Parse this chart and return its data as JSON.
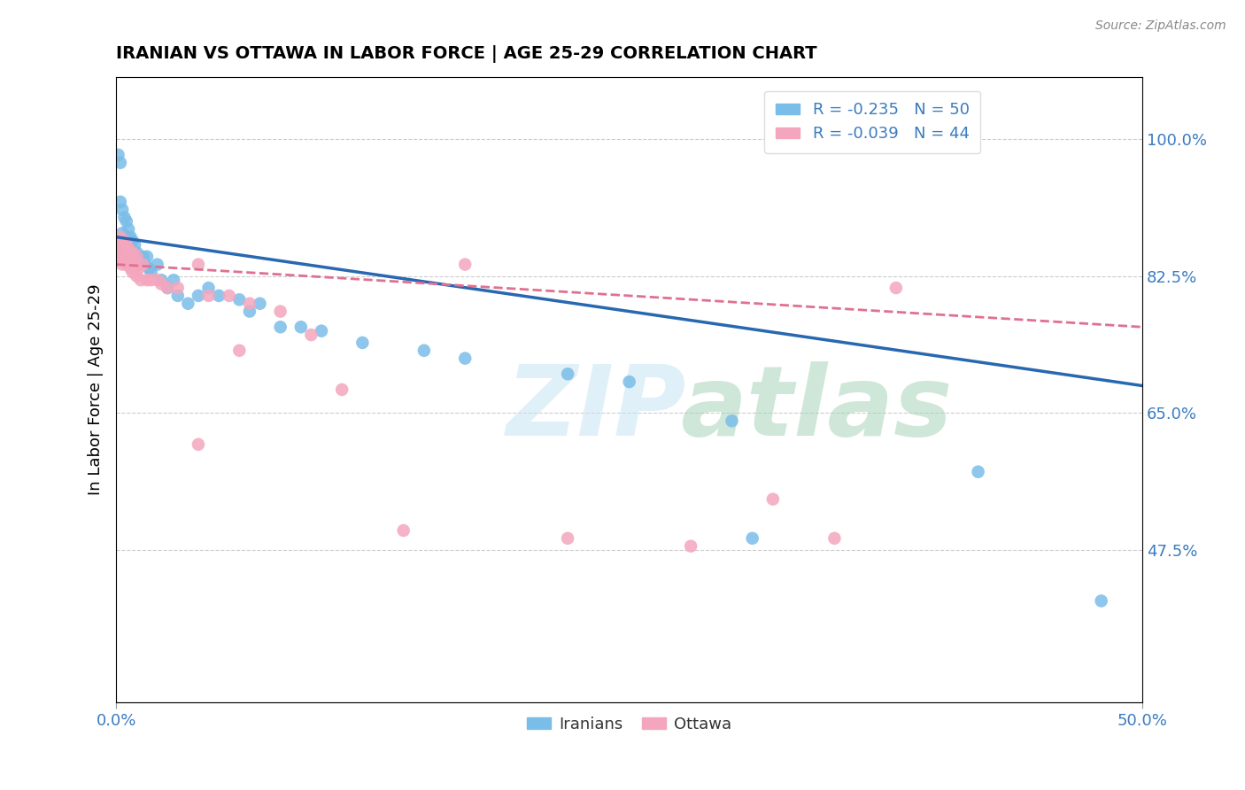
{
  "title": "IRANIAN VS OTTAWA IN LABOR FORCE | AGE 25-29 CORRELATION CHART",
  "source_text": "Source: ZipAtlas.com",
  "ylabel": "In Labor Force | Age 25-29",
  "xlim": [
    0.0,
    0.5
  ],
  "ylim": [
    0.28,
    1.08
  ],
  "ytick_labels": [
    "47.5%",
    "65.0%",
    "82.5%",
    "100.0%"
  ],
  "ytick_values": [
    0.475,
    0.65,
    0.825,
    1.0
  ],
  "iranians_color": "#7abde8",
  "ottawa_color": "#f4a6be",
  "trend_iranians_color": "#2868b0",
  "trend_ottawa_color": "#e07090",
  "iranians_scatter_x": [
    0.001,
    0.002,
    0.002,
    0.003,
    0.003,
    0.004,
    0.004,
    0.005,
    0.005,
    0.006,
    0.006,
    0.007,
    0.007,
    0.008,
    0.008,
    0.009,
    0.009,
    0.01,
    0.01,
    0.011,
    0.012,
    0.013,
    0.014,
    0.015,
    0.016,
    0.017,
    0.02,
    0.022,
    0.025,
    0.028,
    0.03,
    0.035,
    0.04,
    0.045,
    0.05,
    0.06,
    0.065,
    0.07,
    0.08,
    0.09,
    0.1,
    0.12,
    0.15,
    0.17,
    0.22,
    0.25,
    0.3,
    0.31,
    0.42,
    0.48
  ],
  "iranians_scatter_y": [
    0.98,
    0.97,
    0.92,
    0.91,
    0.88,
    0.9,
    0.86,
    0.895,
    0.855,
    0.885,
    0.87,
    0.875,
    0.86,
    0.87,
    0.85,
    0.865,
    0.85,
    0.855,
    0.84,
    0.845,
    0.84,
    0.85,
    0.84,
    0.85,
    0.835,
    0.83,
    0.84,
    0.82,
    0.81,
    0.82,
    0.8,
    0.79,
    0.8,
    0.81,
    0.8,
    0.795,
    0.78,
    0.79,
    0.76,
    0.76,
    0.755,
    0.74,
    0.73,
    0.72,
    0.7,
    0.69,
    0.64,
    0.49,
    0.575,
    0.41
  ],
  "ottawa_scatter_x": [
    0.001,
    0.001,
    0.002,
    0.002,
    0.003,
    0.003,
    0.004,
    0.004,
    0.005,
    0.005,
    0.006,
    0.006,
    0.007,
    0.007,
    0.008,
    0.008,
    0.009,
    0.01,
    0.01,
    0.011,
    0.012,
    0.013,
    0.015,
    0.017,
    0.02,
    0.022,
    0.025,
    0.03,
    0.04,
    0.045,
    0.055,
    0.065,
    0.08,
    0.095,
    0.11,
    0.14,
    0.17,
    0.22,
    0.28,
    0.32,
    0.35,
    0.38,
    0.04,
    0.06
  ],
  "ottawa_scatter_y": [
    0.87,
    0.85,
    0.875,
    0.855,
    0.865,
    0.84,
    0.87,
    0.845,
    0.865,
    0.84,
    0.86,
    0.84,
    0.855,
    0.835,
    0.855,
    0.83,
    0.845,
    0.85,
    0.825,
    0.835,
    0.82,
    0.84,
    0.82,
    0.82,
    0.82,
    0.815,
    0.81,
    0.81,
    0.84,
    0.8,
    0.8,
    0.79,
    0.78,
    0.75,
    0.68,
    0.5,
    0.84,
    0.49,
    0.48,
    0.54,
    0.49,
    0.81,
    0.61,
    0.73
  ],
  "trend_iranians_x0": 0.0,
  "trend_iranians_x1": 0.5,
  "trend_iranians_y0": 0.875,
  "trend_iranians_y1": 0.685,
  "trend_ottawa_x0": 0.0,
  "trend_ottawa_x1": 0.5,
  "trend_ottawa_y0": 0.84,
  "trend_ottawa_y1": 0.76
}
